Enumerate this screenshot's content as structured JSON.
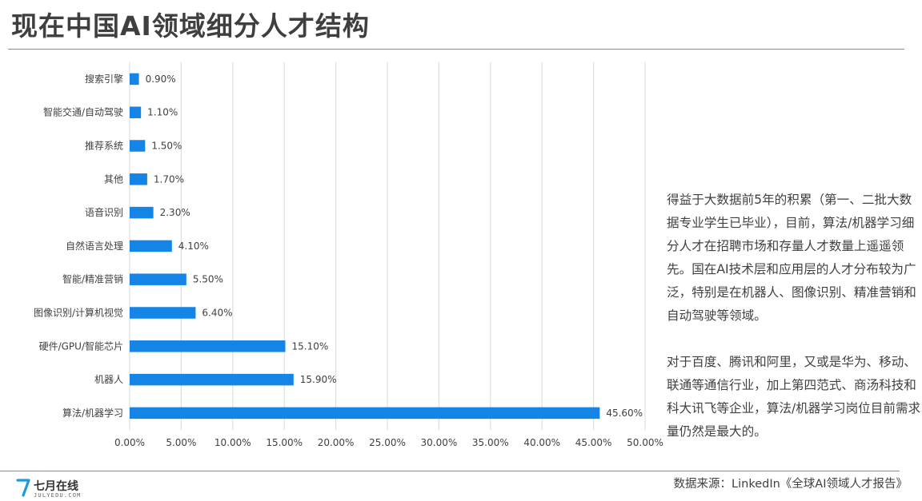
{
  "title": "现在中国AI领域细分人才结构",
  "chart_data": {
    "type": "bar",
    "orientation": "horizontal",
    "title": "",
    "xlabel": "",
    "ylabel": "",
    "xlim": [
      0,
      50
    ],
    "x_ticks": [
      "0.00%",
      "5.00%",
      "10.00%",
      "15.00%",
      "20.00%",
      "25.00%",
      "30.00%",
      "35.00%",
      "40.00%",
      "45.00%",
      "50.00%"
    ],
    "grid": true,
    "categories": [
      "搜索引擎",
      "智能交通/自动驾驶",
      "推荐系统",
      "其他",
      "语音识别",
      "自然语言处理",
      "智能/精准营销",
      "图像识别/计算机视觉",
      "硬件/GPU/智能芯片",
      "机器人",
      "算法/机器学习"
    ],
    "values": [
      0.9,
      1.1,
      1.5,
      1.7,
      2.3,
      4.1,
      5.5,
      6.4,
      15.1,
      15.9,
      45.6
    ],
    "value_labels": [
      "0.90%",
      "1.10%",
      "1.50%",
      "1.70%",
      "2.30%",
      "4.10%",
      "5.50%",
      "6.40%",
      "15.10%",
      "15.90%",
      "45.60%"
    ],
    "bar_color": "#1484e6"
  },
  "commentary": [
    "得益于大数据前5年的积累（第一、二批大数据专业学生已毕业），目前，算法/机器学习细分人才在招聘市场和存量人才数量上遥遥领先。国在AI技术层和应用层的人才分布较为广泛，特别是在机器人、图像识别、精准营销和自动驾驶等领域。",
    "对于百度、腾讯和阿里，又或是华为、移动、联通等通信行业，加上第四范式、商汤科技和科大讯飞等企业，算法/机器学习岗位目前需求量仍然是最大的。"
  ],
  "logo": {
    "name": "七月在线",
    "sub": "JULYEDU.COM",
    "mark_icon": "seven-logo-icon",
    "mark_color": "#1a9be0"
  },
  "source": "数据来源：LinkedIn《全球AI领域人才报告》"
}
